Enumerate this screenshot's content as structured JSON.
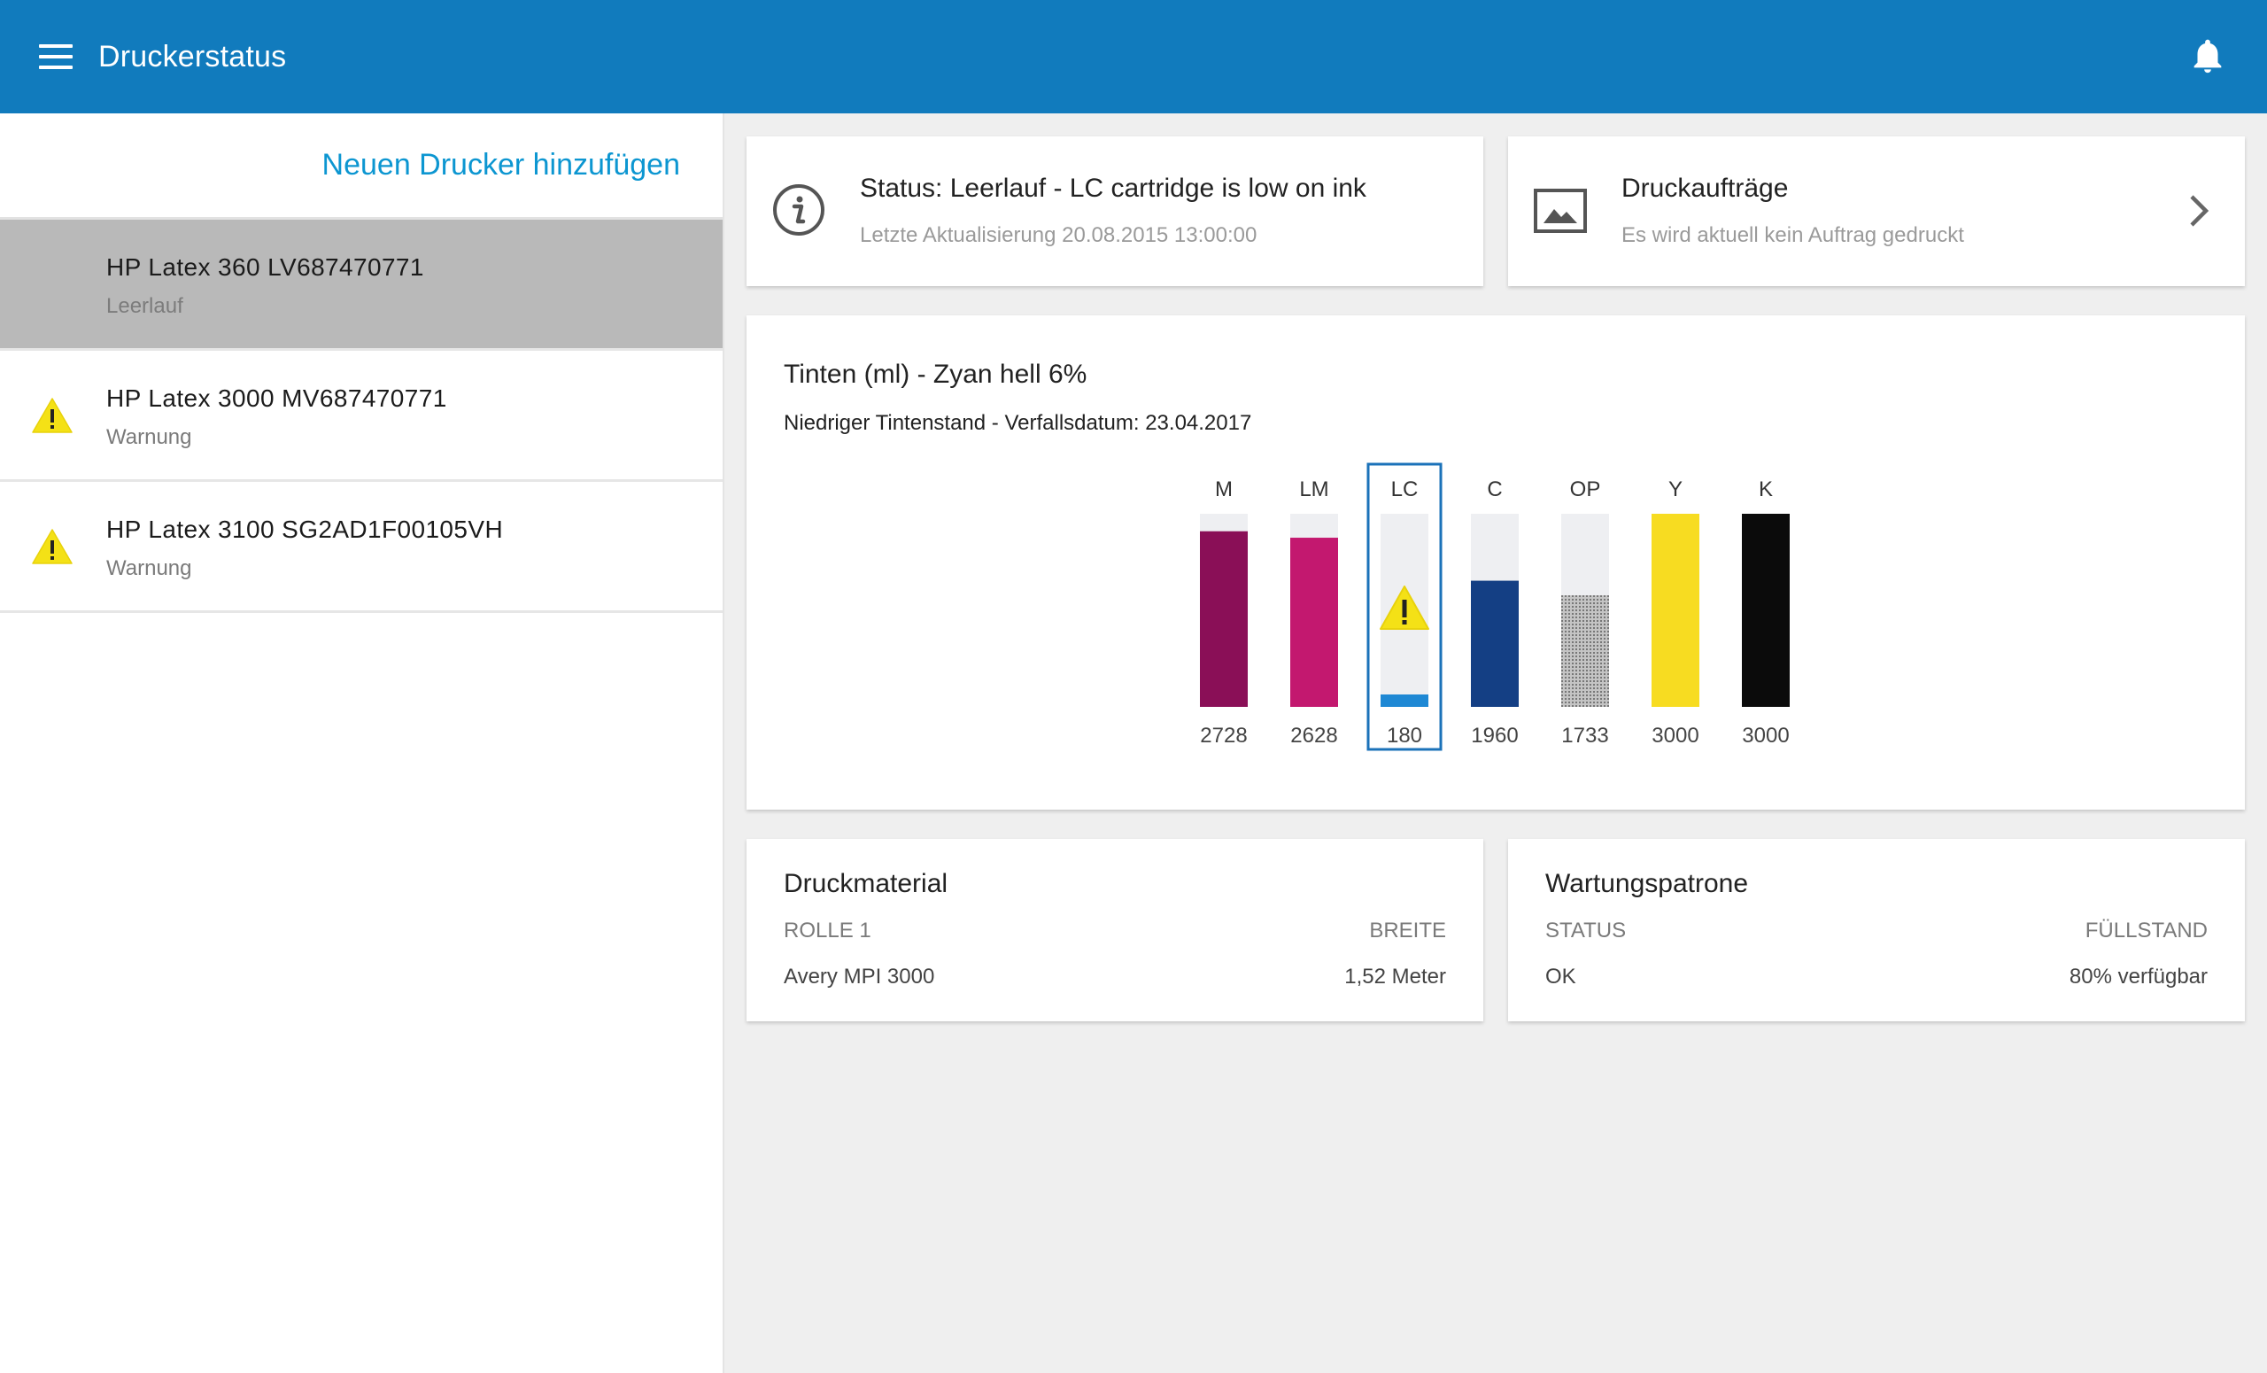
{
  "appbar": {
    "title": "Druckerstatus",
    "menu_icon": "hamburger-menu-icon",
    "notification_icon": "bell-icon",
    "color": "#117bbd"
  },
  "sidebar": {
    "add_printer_label": "Neuen Drucker hinzufügen",
    "printers": [
      {
        "name": "HP Latex 360 LV687470771",
        "status": "Leerlauf",
        "selected": true,
        "warning": false
      },
      {
        "name": "HP Latex 3000 MV687470771",
        "status": "Warnung",
        "selected": false,
        "warning": true
      },
      {
        "name": "HP Latex 3100 SG2AD1F00105VH",
        "status": "Warnung",
        "selected": false,
        "warning": true
      }
    ]
  },
  "status_card": {
    "title": "Status: Leerlauf - LC cartridge is low on ink",
    "subtitle": "Letzte Aktualisierung 20.08.2015 13:00:00",
    "icon": "info-icon"
  },
  "jobs_card": {
    "title": "Druckaufträge",
    "subtitle": "Es wird aktuell kein Auftrag gedruckt",
    "icon": "image-icon"
  },
  "ink_card": {
    "title": "Tinten (ml) - Zyan hell 6%",
    "subtitle": "Niedriger Tintenstand - Verfallsdatum: 23.04.2017"
  },
  "chart_data": {
    "type": "bar",
    "title": "Tinten (ml) - Zyan hell 6%",
    "categories": [
      "M",
      "LM",
      "LC",
      "C",
      "OP",
      "Y",
      "K"
    ],
    "values": [
      2728,
      2628,
      180,
      1960,
      1733,
      3000,
      3000
    ],
    "ylim": [
      0,
      3000
    ],
    "colors": [
      "#8a0f57",
      "#c3186f",
      "#1e88d4",
      "#143f84",
      "#9a9a9a",
      "#f7dc21",
      "#0b0b0b"
    ],
    "selected": "LC",
    "warning": "LC",
    "grid": false,
    "legend": "none"
  },
  "media_card": {
    "title": "Druckmaterial",
    "left_label": "ROLLE 1",
    "right_label": "BREITE",
    "left_value": "Avery MPI 3000",
    "right_value": "1,52 Meter"
  },
  "maint_card": {
    "title": "Wartungspatrone",
    "left_label": "STATUS",
    "right_label": "FÜLLSTAND",
    "left_value": "OK",
    "right_value": "80% verfügbar"
  }
}
